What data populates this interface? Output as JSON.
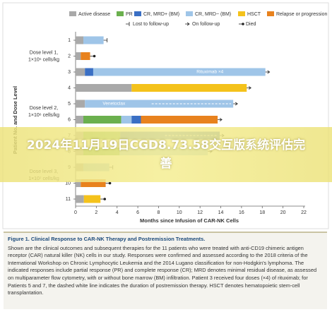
{
  "chart_data": {
    "type": "swimmer",
    "y_label": "Patient No. and Dose Level",
    "x_label": "Months since Infusion of CAR-NK Cells",
    "xlim": [
      0,
      22
    ],
    "xticks": [
      0,
      2,
      4,
      6,
      8,
      10,
      12,
      14,
      16,
      18,
      20,
      22
    ],
    "statuses": [
      {
        "name": "Active disease",
        "color": "#a9a9a9"
      },
      {
        "name": "PR",
        "color": "#6bb04e"
      },
      {
        "name": "CR, MRD+ (BM)",
        "color": "#3a6fc4"
      },
      {
        "name": "CR, MRD− (BM)",
        "color": "#9fc5e8"
      },
      {
        "name": "HSCT",
        "color": "#f4c21b"
      },
      {
        "name": "Relapse or progression",
        "color": "#e8821e"
      }
    ],
    "outcomes": [
      {
        "name": "Lost to follow-up"
      },
      {
        "name": "On follow-up"
      },
      {
        "name": "Died"
      }
    ],
    "groups": [
      {
        "lines": [
          "Dose level 1,",
          "1×10⁵ cells/kg"
        ],
        "patients": [
          {
            "label": "1",
            "outcome": "Lost to follow-up",
            "segments": [
              {
                "status": "Active disease",
                "duration": 0.75
              },
              {
                "status": "CR, MRD− (BM)",
                "duration": 1.95
              }
            ]
          },
          {
            "label": "2",
            "outcome": "Died",
            "segments": [
              {
                "status": "Active disease",
                "duration": 0.5
              },
              {
                "status": "Relapse or progression",
                "duration": 0.9
              }
            ]
          },
          {
            "label": "3",
            "outcome": "On follow-up",
            "segments": [
              {
                "status": "Active disease",
                "duration": 0.9
              },
              {
                "status": "CR, MRD+ (BM)",
                "duration": 0.8
              },
              {
                "status": "CR, MRD− (BM)",
                "duration": 16.6,
                "annotation": "Rituximab ×4"
              }
            ]
          }
        ]
      },
      {
        "lines": [
          "Dose level 2,",
          "1×10⁶ cells/kg"
        ],
        "patients": [
          {
            "label": "4",
            "outcome": "On follow-up",
            "segments": [
              {
                "status": "Active disease",
                "duration": 5.4
              },
              {
                "status": "HSCT",
                "duration": 11.1
              }
            ]
          },
          {
            "label": "5",
            "outcome": "On follow-up",
            "segments": [
              {
                "status": "Active disease",
                "duration": 0.9
              },
              {
                "status": "CR, MRD− (BM)",
                "duration": 14.3,
                "annotation": "Venetoclax",
                "dashed": true
              }
            ]
          },
          {
            "label": "6",
            "outcome": "On follow-up",
            "segments": [
              {
                "status": "Active disease",
                "duration": 0.75
              },
              {
                "status": "PR",
                "duration": 3.65
              },
              {
                "status": "CR, MRD− (BM)",
                "duration": 1.0
              },
              {
                "status": "CR, MRD+ (BM)",
                "duration": 0.9
              },
              {
                "status": "Relapse or progression",
                "duration": 7.4
              }
            ]
          },
          {
            "label": "7",
            "outcome": "On follow-up",
            "segments": [
              {
                "status": "Active disease",
                "duration": 0.75
              },
              {
                "status": "PR",
                "duration": 3.55
              },
              {
                "status": "CR, MRD+ (BM)",
                "duration": 9.6,
                "dashed": true
              }
            ]
          }
        ]
      },
      {
        "lines": [
          "Dose level 3,",
          "1×10⁷ cells/kg"
        ],
        "patients": [
          {
            "label": "8",
            "outcome": "On follow-up",
            "segments": [
              {
                "status": "Active disease",
                "duration": 0.75
              },
              {
                "status": "PR",
                "duration": 3.5
              },
              {
                "status": "CR, MRD− (BM)",
                "duration": 8.5
              }
            ]
          },
          {
            "label": "9",
            "outcome": "Lost to follow-up",
            "segments": [
              {
                "status": "Active disease",
                "duration": 0.75
              },
              {
                "status": "CR, MRD− (BM)",
                "duration": 2.5
              }
            ]
          },
          {
            "label": "10",
            "outcome": "Died",
            "segments": [
              {
                "status": "Active disease",
                "duration": 0.5
              },
              {
                "status": "Relapse or progression",
                "duration": 2.4
              }
            ]
          },
          {
            "label": "11",
            "outcome": "Died",
            "segments": [
              {
                "status": "Active disease",
                "duration": 0.8
              },
              {
                "status": "HSCT",
                "duration": 1.6
              }
            ]
          }
        ]
      }
    ]
  },
  "caption": {
    "title": "Figure 1. Clinical Response to CAR-NK Therapy and Postremission Treatments.",
    "body": "Shown are the clinical outcomes and subsequent therapies for the 11 patients who were treated with anti-CD19 chimeric antigen receptor (CAR) natural killer (NK) cells in our study. Responses were confirmed and assessed according to the 2018 criteria of the International Workshop on Chronic Lymphocytic Leukemia and the 2014 Lugano classification for non-Hodgkin's lymphoma. The indicated responses include partial response (PR) and complete response (CR); MRD denotes minimal residual disease, as assessed on multiparameter flow cytometry, with or without bone marrow (BM) infiltration. Patient 3 received four doses (×4) of rituximab; for Patients 5 and 7, the dashed white line indicates the duration of postremission therapy. HSCT denotes hematopoietic stem-cell transplantation."
  },
  "banner": "2024年11月19日CGD8.73.58交互版系统评估完善"
}
